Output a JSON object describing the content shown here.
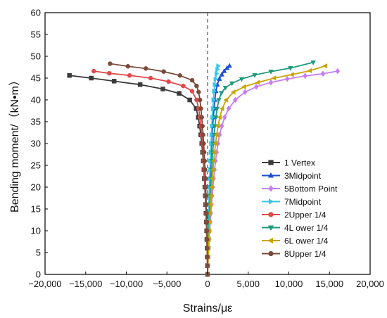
{
  "chart_data": {
    "type": "line",
    "xlabel": "Strains/με",
    "ylabel": "Bending moment/（kN•m）",
    "xlim": [
      -20000,
      20000
    ],
    "ylim": [
      0,
      60
    ],
    "x_ticks": [
      -20000,
      -15000,
      -10000,
      -5000,
      0,
      5000,
      10000,
      15000,
      20000
    ],
    "x_tick_labels": [
      "−20,000",
      "−15,000",
      "−10,000",
      "−5,000",
      "0",
      "5,000",
      "10,000",
      "15,000",
      "20,000"
    ],
    "y_ticks": [
      0,
      5,
      10,
      15,
      20,
      25,
      30,
      35,
      40,
      45,
      50,
      55,
      60
    ],
    "y_tick_labels": [
      "0",
      "5",
      "10",
      "15",
      "20",
      "25",
      "30",
      "35",
      "40",
      "45",
      "50",
      "55",
      "60"
    ],
    "zero_line": "dashed",
    "legend_position": "right-center",
    "series": [
      {
        "name": "1 Vertex",
        "color": "#3b3b3b",
        "marker": "square",
        "points": [
          [
            0,
            0
          ],
          [
            -20,
            2
          ],
          [
            -40,
            4
          ],
          [
            -60,
            6
          ],
          [
            -90,
            8
          ],
          [
            -120,
            10
          ],
          [
            -160,
            12
          ],
          [
            -200,
            14
          ],
          [
            -240,
            16
          ],
          [
            -290,
            18
          ],
          [
            -340,
            20
          ],
          [
            -400,
            22
          ],
          [
            -460,
            24
          ],
          [
            -530,
            26
          ],
          [
            -620,
            28
          ],
          [
            -720,
            30
          ],
          [
            -840,
            32
          ],
          [
            -980,
            34
          ],
          [
            -1150,
            36
          ],
          [
            -1400,
            38
          ],
          [
            -2200,
            40
          ],
          [
            -3500,
            41.5
          ],
          [
            -5500,
            42.5
          ],
          [
            -8300,
            43.5
          ],
          [
            -11500,
            44.3
          ],
          [
            -14300,
            45
          ],
          [
            -17000,
            45.6
          ]
        ]
      },
      {
        "name": "3Midpoint",
        "color": "#1f4fd6",
        "marker": "triangle-up",
        "points": [
          [
            0,
            0
          ],
          [
            20,
            2
          ],
          [
            40,
            4
          ],
          [
            60,
            6
          ],
          [
            80,
            8
          ],
          [
            100,
            10
          ],
          [
            130,
            12
          ],
          [
            160,
            14
          ],
          [
            190,
            16
          ],
          [
            220,
            18
          ],
          [
            260,
            20
          ],
          [
            300,
            22
          ],
          [
            340,
            24
          ],
          [
            390,
            26
          ],
          [
            440,
            28
          ],
          [
            500,
            30
          ],
          [
            560,
            32
          ],
          [
            630,
            34
          ],
          [
            710,
            36
          ],
          [
            800,
            38
          ],
          [
            900,
            40
          ],
          [
            1030,
            42
          ],
          [
            1200,
            43.5
          ],
          [
            1450,
            44.8
          ],
          [
            1750,
            45.8
          ],
          [
            2050,
            46.6
          ],
          [
            2400,
            47.3
          ],
          [
            2700,
            47.8
          ]
        ]
      },
      {
        "name": "5Bottom Point",
        "color": "#c77df0",
        "marker": "diamond",
        "points": [
          [
            0,
            0
          ],
          [
            50,
            2
          ],
          [
            100,
            4
          ],
          [
            150,
            6
          ],
          [
            200,
            8
          ],
          [
            260,
            10
          ],
          [
            330,
            12
          ],
          [
            400,
            14
          ],
          [
            480,
            16
          ],
          [
            560,
            18
          ],
          [
            650,
            20
          ],
          [
            750,
            22
          ],
          [
            860,
            24
          ],
          [
            980,
            26
          ],
          [
            1120,
            28
          ],
          [
            1280,
            30
          ],
          [
            1480,
            32
          ],
          [
            1750,
            34
          ],
          [
            2100,
            36
          ],
          [
            2600,
            38
          ],
          [
            3400,
            40
          ],
          [
            4600,
            41.8
          ],
          [
            6000,
            43
          ],
          [
            7800,
            44
          ],
          [
            9800,
            44.8
          ],
          [
            12000,
            45.5
          ],
          [
            14200,
            46
          ],
          [
            16000,
            46.6
          ]
        ]
      },
      {
        "name": "7Midpoint",
        "color": "#33c8e8",
        "marker": "triangle-right",
        "points": [
          [
            0,
            0
          ],
          [
            15,
            2
          ],
          [
            30,
            4
          ],
          [
            50,
            6
          ],
          [
            70,
            8
          ],
          [
            90,
            10
          ],
          [
            110,
            12
          ],
          [
            130,
            14
          ],
          [
            160,
            16
          ],
          [
            190,
            18
          ],
          [
            220,
            20
          ],
          [
            250,
            22
          ],
          [
            290,
            24
          ],
          [
            330,
            26
          ],
          [
            370,
            28
          ],
          [
            420,
            30
          ],
          [
            470,
            32
          ],
          [
            520,
            34
          ],
          [
            580,
            36
          ],
          [
            640,
            38
          ],
          [
            710,
            40
          ],
          [
            790,
            42
          ],
          [
            880,
            43.5
          ],
          [
            980,
            44.8
          ],
          [
            1090,
            46
          ],
          [
            1200,
            47
          ],
          [
            1300,
            47.8
          ]
        ]
      },
      {
        "name": "2Upper 1/4",
        "color": "#e04848",
        "marker": "circle",
        "points": [
          [
            0,
            0
          ],
          [
            -20,
            2
          ],
          [
            -40,
            4
          ],
          [
            -60,
            6
          ],
          [
            -80,
            8
          ],
          [
            -110,
            10
          ],
          [
            -140,
            12
          ],
          [
            -170,
            14
          ],
          [
            -210,
            16
          ],
          [
            -250,
            18
          ],
          [
            -300,
            20
          ],
          [
            -350,
            22
          ],
          [
            -410,
            24
          ],
          [
            -470,
            26
          ],
          [
            -540,
            28
          ],
          [
            -620,
            30
          ],
          [
            -710,
            32
          ],
          [
            -820,
            34
          ],
          [
            -950,
            36
          ],
          [
            -1100,
            38
          ],
          [
            -1350,
            40
          ],
          [
            -1900,
            42
          ],
          [
            -3000,
            43.2
          ],
          [
            -4800,
            44.2
          ],
          [
            -7000,
            45
          ],
          [
            -9600,
            45.6
          ],
          [
            -12100,
            46.1
          ],
          [
            -14000,
            46.6
          ]
        ]
      },
      {
        "name": "4L ower 1/4",
        "color": "#1f9a7a",
        "marker": "triangle-down",
        "points": [
          [
            0,
            0
          ],
          [
            30,
            2
          ],
          [
            60,
            4
          ],
          [
            90,
            6
          ],
          [
            120,
            8
          ],
          [
            160,
            10
          ],
          [
            200,
            12
          ],
          [
            240,
            14
          ],
          [
            290,
            16
          ],
          [
            340,
            18
          ],
          [
            390,
            20
          ],
          [
            440,
            22
          ],
          [
            500,
            24
          ],
          [
            560,
            26
          ],
          [
            630,
            28
          ],
          [
            710,
            30
          ],
          [
            800,
            32
          ],
          [
            900,
            34
          ],
          [
            1020,
            36
          ],
          [
            1170,
            38
          ],
          [
            1380,
            40
          ],
          [
            1700,
            41.6
          ],
          [
            2200,
            42.8
          ],
          [
            3000,
            43.8
          ],
          [
            4200,
            44.8
          ],
          [
            5800,
            45.7
          ],
          [
            7800,
            46.5
          ],
          [
            10200,
            47.3
          ],
          [
            13000,
            48.6
          ]
        ]
      },
      {
        "name": "6L ower 1/4",
        "color": "#c8a400",
        "marker": "triangle-left",
        "points": [
          [
            0,
            0
          ],
          [
            40,
            2
          ],
          [
            80,
            4
          ],
          [
            120,
            6
          ],
          [
            160,
            8
          ],
          [
            210,
            10
          ],
          [
            260,
            12
          ],
          [
            310,
            14
          ],
          [
            370,
            16
          ],
          [
            430,
            18
          ],
          [
            500,
            20
          ],
          [
            580,
            22
          ],
          [
            660,
            24
          ],
          [
            750,
            26
          ],
          [
            860,
            28
          ],
          [
            980,
            30
          ],
          [
            1120,
            32
          ],
          [
            1290,
            34
          ],
          [
            1500,
            36
          ],
          [
            1800,
            38
          ],
          [
            2300,
            40
          ],
          [
            3200,
            41.8
          ],
          [
            4500,
            43
          ],
          [
            6200,
            44
          ],
          [
            8200,
            45
          ],
          [
            10400,
            45.8
          ],
          [
            12600,
            46.7
          ],
          [
            14500,
            47.8
          ]
        ]
      },
      {
        "name": "8Upper 1/4",
        "color": "#7a4a3a",
        "marker": "circle",
        "points": [
          [
            0,
            0
          ],
          [
            -15,
            2
          ],
          [
            -30,
            4
          ],
          [
            -45,
            6
          ],
          [
            -60,
            8
          ],
          [
            -80,
            10
          ],
          [
            -100,
            12
          ],
          [
            -130,
            14
          ],
          [
            -160,
            16
          ],
          [
            -190,
            18
          ],
          [
            -230,
            20
          ],
          [
            -270,
            22
          ],
          [
            -310,
            24
          ],
          [
            -360,
            26
          ],
          [
            -420,
            28
          ],
          [
            -480,
            30
          ],
          [
            -550,
            32
          ],
          [
            -630,
            34
          ],
          [
            -720,
            36
          ],
          [
            -820,
            38
          ],
          [
            -940,
            40
          ],
          [
            -1100,
            41.8
          ],
          [
            -1350,
            43.2
          ],
          [
            -1900,
            44.5
          ],
          [
            -3400,
            45.6
          ],
          [
            -5400,
            46.5
          ],
          [
            -7600,
            47.2
          ],
          [
            -9800,
            47.7
          ],
          [
            -12000,
            48.3
          ]
        ]
      }
    ]
  }
}
